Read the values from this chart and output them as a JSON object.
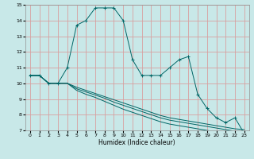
{
  "xlabel": "Humidex (Indice chaleur)",
  "xlim": [
    -0.5,
    23.5
  ],
  "ylim": [
    7,
    15
  ],
  "yticks": [
    7,
    8,
    9,
    10,
    11,
    12,
    13,
    14,
    15
  ],
  "xticks": [
    0,
    1,
    2,
    3,
    4,
    5,
    6,
    7,
    8,
    9,
    10,
    11,
    12,
    13,
    14,
    15,
    16,
    17,
    18,
    19,
    20,
    21,
    22,
    23
  ],
  "bg_color": "#c8e8e8",
  "grid_color": "#d8a0a0",
  "line_color": "#006666",
  "series0": [
    10.5,
    10.5,
    10.0,
    10.0,
    11.0,
    13.7,
    14.0,
    14.8,
    14.8,
    14.8,
    14.0,
    11.5,
    10.5,
    10.5,
    10.5,
    11.0,
    11.5,
    11.7,
    9.3,
    8.4,
    7.8,
    7.5,
    7.8,
    6.8
  ],
  "series1": [
    10.5,
    10.5,
    10.0,
    10.0,
    10.0,
    9.75,
    9.55,
    9.35,
    9.15,
    8.95,
    8.75,
    8.55,
    8.35,
    8.15,
    7.95,
    7.8,
    7.7,
    7.6,
    7.5,
    7.4,
    7.3,
    7.2,
    7.1,
    7.05
  ],
  "series2": [
    10.5,
    10.5,
    10.0,
    10.0,
    10.0,
    9.65,
    9.45,
    9.25,
    9.05,
    8.8,
    8.6,
    8.4,
    8.2,
    8.0,
    7.8,
    7.65,
    7.55,
    7.45,
    7.35,
    7.25,
    7.15,
    7.05,
    6.95,
    6.85
  ],
  "series3": [
    10.5,
    10.5,
    10.0,
    10.0,
    10.0,
    9.55,
    9.3,
    9.1,
    8.85,
    8.6,
    8.35,
    8.15,
    7.95,
    7.75,
    7.55,
    7.4,
    7.3,
    7.2,
    7.1,
    7.0,
    6.9,
    6.8,
    6.7,
    6.6
  ]
}
